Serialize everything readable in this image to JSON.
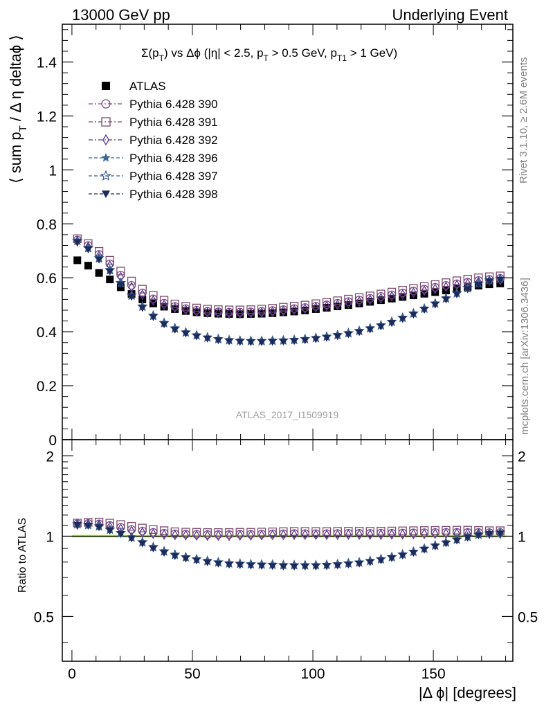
{
  "header": {
    "left": "13000 GeV pp",
    "right": "Underlying Event"
  },
  "side_labels": {
    "rivet": "Rivet 3.1.10, ≥ 2.6M events",
    "mcplots": "mcplots.cern.ch [arXiv:1306.3436]"
  },
  "watermark": "ATLAS_2017_I1509919",
  "chart_data": [
    {
      "type": "scatter",
      "panel": "main",
      "title_parts": {
        "sigma": "Σ(p",
        "t_sub": "T",
        "vs": ") vs Δϕ (|η| < 2.5, p",
        "t_sub2": "T",
        "gt": " > 0.5 GeV, p",
        "t1_sub": "T1",
        "end": " > 1 GeV)"
      },
      "ylabel_parts": {
        "a": "⟨ sum p",
        "sub": "T",
        "b": " / Δ η deltaϕ ⟩"
      },
      "xlim": [
        -4,
        183
      ],
      "ylim": [
        0,
        1.54
      ],
      "yticks": [
        "0",
        "0.2",
        "0.4",
        "0.6",
        "0.8",
        "1",
        "1.2",
        "1.4"
      ],
      "ytick_values": [
        0,
        0.2,
        0.4,
        0.6,
        0.8,
        1.0,
        1.2,
        1.4
      ],
      "legend_position": "top-left",
      "series": [
        {
          "name": "ATLAS",
          "color": "#000000",
          "marker": "filled-square",
          "x": [
            2.25,
            6.75,
            11.25,
            15.75,
            20.25,
            24.75,
            29.25,
            33.75,
            38.25,
            42.75,
            47.25,
            51.75,
            56.25,
            60.75,
            65.25,
            69.75,
            74.25,
            78.75,
            83.25,
            87.75,
            92.25,
            96.75,
            101.25,
            105.75,
            110.25,
            114.75,
            119.25,
            123.75,
            128.25,
            132.75,
            137.25,
            141.75,
            146.25,
            150.75,
            155.25,
            159.75,
            164.25,
            168.75,
            173.25,
            177.75
          ],
          "y": [
            0.665,
            0.645,
            0.618,
            0.594,
            0.565,
            0.54,
            0.52,
            0.505,
            0.493,
            0.484,
            0.477,
            0.472,
            0.469,
            0.467,
            0.466,
            0.465,
            0.466,
            0.467,
            0.469,
            0.472,
            0.475,
            0.479,
            0.484,
            0.489,
            0.494,
            0.499,
            0.505,
            0.511,
            0.517,
            0.523,
            0.529,
            0.535,
            0.541,
            0.547,
            0.553,
            0.559,
            0.565,
            0.571,
            0.576,
            0.579
          ]
        },
        {
          "name": "Pythia 6.428 390",
          "color": "#7b4a8c",
          "marker": "open-circle",
          "x": [
            2.25,
            6.75,
            11.25,
            15.75,
            20.25,
            24.75,
            29.25,
            33.75,
            38.25,
            42.75,
            47.25,
            51.75,
            56.25,
            60.75,
            65.25,
            69.75,
            74.25,
            78.75,
            83.25,
            87.75,
            92.25,
            96.75,
            101.25,
            105.75,
            110.25,
            114.75,
            119.25,
            123.75,
            128.25,
            132.75,
            137.25,
            141.75,
            146.25,
            150.75,
            155.25,
            159.75,
            164.25,
            168.75,
            173.25,
            177.75
          ],
          "y": [
            0.74,
            0.72,
            0.687,
            0.652,
            0.61,
            0.572,
            0.544,
            0.522,
            0.506,
            0.494,
            0.486,
            0.48,
            0.476,
            0.474,
            0.473,
            0.473,
            0.474,
            0.476,
            0.479,
            0.482,
            0.486,
            0.49,
            0.495,
            0.5,
            0.506,
            0.512,
            0.518,
            0.524,
            0.531,
            0.537,
            0.544,
            0.551,
            0.558,
            0.565,
            0.572,
            0.578,
            0.584,
            0.59,
            0.594,
            0.598
          ]
        },
        {
          "name": "Pythia 6.428 391",
          "color": "#7b4a6c",
          "marker": "open-square",
          "x": [
            2.25,
            6.75,
            11.25,
            15.75,
            20.25,
            24.75,
            29.25,
            33.75,
            38.25,
            42.75,
            47.25,
            51.75,
            56.25,
            60.75,
            65.25,
            69.75,
            74.25,
            78.75,
            83.25,
            87.75,
            92.25,
            96.75,
            101.25,
            105.75,
            110.25,
            114.75,
            119.25,
            123.75,
            128.25,
            132.75,
            137.25,
            141.75,
            146.25,
            150.75,
            155.25,
            159.75,
            164.25,
            168.75,
            173.25,
            177.75
          ],
          "y": [
            0.745,
            0.727,
            0.698,
            0.665,
            0.625,
            0.588,
            0.558,
            0.535,
            0.517,
            0.503,
            0.494,
            0.488,
            0.484,
            0.482,
            0.481,
            0.481,
            0.482,
            0.484,
            0.487,
            0.491,
            0.495,
            0.499,
            0.504,
            0.509,
            0.515,
            0.521,
            0.527,
            0.533,
            0.54,
            0.547,
            0.554,
            0.561,
            0.568,
            0.575,
            0.582,
            0.589,
            0.595,
            0.6,
            0.604,
            0.607
          ]
        },
        {
          "name": "Pythia 6.428 392",
          "color": "#5a3a8c",
          "marker": "open-diamond",
          "x": [
            2.25,
            6.75,
            11.25,
            15.75,
            20.25,
            24.75,
            29.25,
            33.75,
            38.25,
            42.75,
            47.25,
            51.75,
            56.25,
            60.75,
            65.25,
            69.75,
            74.25,
            78.75,
            83.25,
            87.75,
            92.25,
            96.75,
            101.25,
            105.75,
            110.25,
            114.75,
            119.25,
            123.75,
            128.25,
            132.75,
            137.25,
            141.75,
            146.25,
            150.75,
            155.25,
            159.75,
            164.25,
            168.75,
            173.25,
            177.75
          ],
          "y": [
            0.735,
            0.715,
            0.682,
            0.645,
            0.603,
            0.565,
            0.537,
            0.516,
            0.5,
            0.489,
            0.481,
            0.475,
            0.471,
            0.469,
            0.468,
            0.468,
            0.469,
            0.471,
            0.474,
            0.477,
            0.481,
            0.485,
            0.49,
            0.495,
            0.5,
            0.506,
            0.512,
            0.518,
            0.524,
            0.531,
            0.538,
            0.545,
            0.552,
            0.559,
            0.566,
            0.573,
            0.579,
            0.585,
            0.589,
            0.592
          ]
        },
        {
          "name": "Pythia 6.428 396",
          "color": "#3a6a8c",
          "marker": "filled-star",
          "x": [
            2.25,
            6.75,
            11.25,
            15.75,
            20.25,
            24.75,
            29.25,
            33.75,
            38.25,
            42.75,
            47.25,
            51.75,
            56.25,
            60.75,
            65.25,
            69.75,
            74.25,
            78.75,
            83.25,
            87.75,
            92.25,
            96.75,
            101.25,
            105.75,
            110.25,
            114.75,
            119.25,
            123.75,
            128.25,
            132.75,
            137.25,
            141.75,
            146.25,
            150.75,
            155.25,
            159.75,
            164.25,
            168.75,
            173.25,
            177.75
          ],
          "y": [
            0.735,
            0.708,
            0.67,
            0.626,
            0.578,
            0.532,
            0.491,
            0.457,
            0.43,
            0.41,
            0.396,
            0.385,
            0.377,
            0.371,
            0.367,
            0.365,
            0.364,
            0.364,
            0.365,
            0.366,
            0.368,
            0.371,
            0.375,
            0.38,
            0.386,
            0.393,
            0.401,
            0.411,
            0.422,
            0.435,
            0.45,
            0.466,
            0.484,
            0.503,
            0.522,
            0.541,
            0.56,
            0.577,
            0.589,
            0.595
          ]
        },
        {
          "name": "Pythia 6.428 397",
          "color": "#3a5a8c",
          "marker": "open-star",
          "x": [
            2.25,
            6.75,
            11.25,
            15.75,
            20.25,
            24.75,
            29.25,
            33.75,
            38.25,
            42.75,
            47.25,
            51.75,
            56.25,
            60.75,
            65.25,
            69.75,
            74.25,
            78.75,
            83.25,
            87.75,
            92.25,
            96.75,
            101.25,
            105.75,
            110.25,
            114.75,
            119.25,
            123.75,
            128.25,
            132.75,
            137.25,
            141.75,
            146.25,
            150.75,
            155.25,
            159.75,
            164.25,
            168.75,
            173.25,
            177.75
          ],
          "y": [
            0.738,
            0.711,
            0.673,
            0.629,
            0.581,
            0.535,
            0.494,
            0.46,
            0.433,
            0.413,
            0.398,
            0.387,
            0.379,
            0.373,
            0.369,
            0.367,
            0.366,
            0.366,
            0.367,
            0.368,
            0.37,
            0.373,
            0.377,
            0.382,
            0.388,
            0.395,
            0.403,
            0.413,
            0.424,
            0.437,
            0.452,
            0.468,
            0.486,
            0.505,
            0.524,
            0.543,
            0.562,
            0.579,
            0.591,
            0.597
          ]
        },
        {
          "name": "Pythia 6.428 398",
          "color": "#1e2a5a",
          "marker": "filled-triangle-down",
          "x": [
            2.25,
            6.75,
            11.25,
            15.75,
            20.25,
            24.75,
            29.25,
            33.75,
            38.25,
            42.75,
            47.25,
            51.75,
            56.25,
            60.75,
            65.25,
            69.75,
            74.25,
            78.75,
            83.25,
            87.75,
            92.25,
            96.75,
            101.25,
            105.75,
            110.25,
            114.75,
            119.25,
            123.75,
            128.25,
            132.75,
            137.25,
            141.75,
            146.25,
            150.75,
            155.25,
            159.75,
            164.25,
            168.75,
            173.25,
            177.75
          ],
          "y": [
            0.732,
            0.705,
            0.667,
            0.623,
            0.575,
            0.529,
            0.488,
            0.454,
            0.427,
            0.407,
            0.393,
            0.382,
            0.374,
            0.368,
            0.364,
            0.362,
            0.361,
            0.361,
            0.362,
            0.363,
            0.365,
            0.368,
            0.372,
            0.377,
            0.383,
            0.39,
            0.398,
            0.408,
            0.419,
            0.432,
            0.447,
            0.463,
            0.481,
            0.5,
            0.519,
            0.538,
            0.557,
            0.574,
            0.586,
            0.592
          ]
        }
      ]
    },
    {
      "type": "scatter",
      "panel": "ratio",
      "ylabel": "Ratio to ATLAS",
      "xlabel_parts": {
        "a": "|Δ ϕ| [degrees]"
      },
      "xlim": [
        -4,
        183
      ],
      "ylim": [
        0.34,
        2.3
      ],
      "yticks": [
        "0.5",
        "1",
        "2"
      ],
      "ytick_values": [
        0.5,
        1.0,
        2.0
      ],
      "xticks": [
        "0",
        "50",
        "100",
        "150"
      ],
      "xtick_values": [
        0,
        50,
        100,
        150
      ],
      "reference_band_color": "#c8ff66",
      "reference_line_value": 1.0
    }
  ]
}
